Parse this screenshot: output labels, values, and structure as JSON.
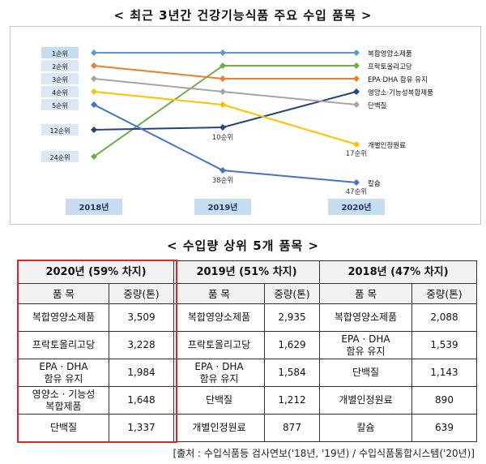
{
  "top_title": "< 최근 3년간 건강기능식품 주요 수입 품목 >",
  "table_title": "< 수입량 상위 5개 품목 >",
  "source": "[출처 : 수입식품등 검사연보('18년, '19년) / 수입식품통합시스템('20년)]",
  "chart_data": {
    "type": "line",
    "title": "최근 3년간 건강기능식품 주요 수입 품목",
    "categories": [
      "2018년",
      "2019년",
      "2020년"
    ],
    "rank_labels": [
      "1순위",
      "2순위",
      "3순위",
      "4순위",
      "5순위",
      "12순위",
      "24순위"
    ],
    "y_scale": "rank (1 = top)",
    "series": [
      {
        "name": "복합영양소제품",
        "color": "#5b9bd5",
        "ranks": [
          1,
          1,
          1
        ]
      },
      {
        "name": "프락토올리고당",
        "color": "#70ad47",
        "ranks": [
          24,
          2,
          2
        ]
      },
      {
        "name": "EPA·DHA 함유 유지",
        "color": "#ed7d31",
        "ranks": [
          2,
          3,
          3
        ]
      },
      {
        "name": "영양소·기능성복합제품",
        "color": "#264478",
        "ranks": [
          12,
          10,
          4
        ]
      },
      {
        "name": "단백질",
        "color": "#a5a5a5",
        "ranks": [
          3,
          4,
          5
        ]
      },
      {
        "name": "개별인정원료",
        "color": "#ffc000",
        "ranks": [
          4,
          5,
          17
        ]
      },
      {
        "name": "칼슘",
        "color": "#4472c4",
        "ranks": [
          5,
          38,
          47
        ]
      }
    ],
    "point_labels": [
      "10순위",
      "38순위",
      "17순위",
      "47순위"
    ]
  },
  "table": {
    "groups": [
      {
        "year": "2020년 (59% 차지)",
        "col_item": "품 목",
        "col_qty": "중량(톤)",
        "rows": [
          [
            "복합영양소제품",
            "3,509"
          ],
          [
            "프락토올리고당",
            "3,228"
          ],
          [
            "EPA · DHA\n함유 유지",
            "1,984"
          ],
          [
            "영양소 · 기능성\n복합제품",
            "1,648"
          ],
          [
            "단백질",
            "1,337"
          ]
        ]
      },
      {
        "year": "2019년 (51% 차지)",
        "col_item": "품 목",
        "col_qty": "중량(톤)",
        "rows": [
          [
            "복합영양소제품",
            "2,935"
          ],
          [
            "프락토올리고당",
            "1,629"
          ],
          [
            "EPA · DHA\n함유 유지",
            "1,584"
          ],
          [
            "단백질",
            "1,212"
          ],
          [
            "개별인정원료",
            "877"
          ]
        ]
      },
      {
        "year": "2018년 (47% 차지)",
        "col_item": "품 목",
        "col_qty": "중량(톤)",
        "rows": [
          [
            "복합영양소제품",
            "2,088"
          ],
          [
            "EPA · DHA\n함유 유지",
            "1,539"
          ],
          [
            "단백질",
            "1,143"
          ],
          [
            "개별인정원료",
            "890"
          ],
          [
            "칼슘",
            "639"
          ]
        ]
      }
    ]
  }
}
